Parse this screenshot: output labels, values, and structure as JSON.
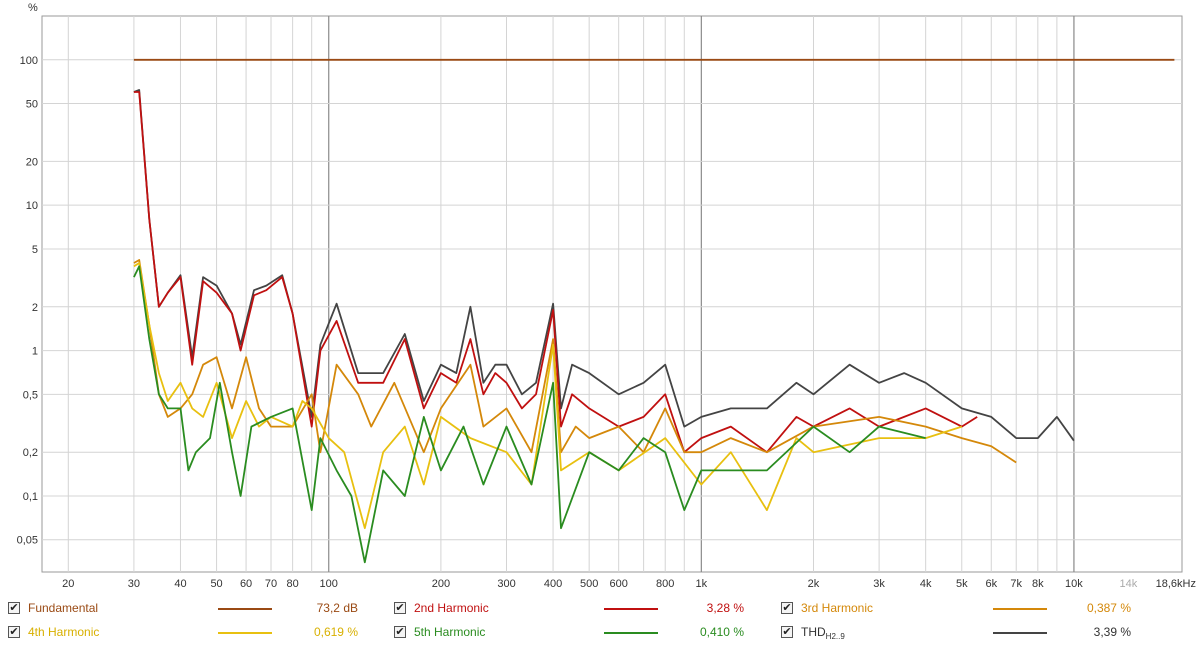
{
  "chart_data": {
    "type": "line",
    "title": "",
    "ylabel": "%",
    "xlabel": "",
    "x_scale": "log",
    "y_scale": "log",
    "xlim": [
      17,
      19500
    ],
    "ylim": [
      0.03,
      200
    ],
    "grid": true,
    "x_ticks": [
      "20",
      "30",
      "40",
      "50",
      "60",
      "70",
      "80",
      "100",
      "200",
      "300",
      "400",
      "500",
      "600",
      "800",
      "1k",
      "2k",
      "3k",
      "4k",
      "5k",
      "6k",
      "7k",
      "8k",
      "10k",
      "14k",
      "18,6kHz"
    ],
    "x_tick_values": [
      20,
      30,
      40,
      50,
      60,
      70,
      80,
      100,
      200,
      300,
      400,
      500,
      600,
      800,
      1000,
      2000,
      3000,
      4000,
      5000,
      6000,
      7000,
      8000,
      10000,
      14000,
      18600
    ],
    "y_ticks": [
      "0,05",
      "0,1",
      "0,2",
      "0,5",
      "1",
      "2",
      "5",
      "10",
      "20",
      "50",
      "100"
    ],
    "y_tick_values": [
      0.05,
      0.1,
      0.2,
      0.5,
      1,
      2,
      5,
      10,
      20,
      50,
      100
    ],
    "series": [
      {
        "name": "Fundamental",
        "value_label": "73,2 dB",
        "color": "#9a4a14",
        "x": [
          30,
          18600
        ],
        "values": [
          100,
          100
        ]
      },
      {
        "name": "2nd Harmonic",
        "value_label": "3,28 %",
        "color": "#c01010",
        "x": [
          30,
          31,
          33,
          35,
          37,
          40,
          43,
          46,
          50,
          55,
          58,
          63,
          68,
          75,
          80,
          90,
          95,
          105,
          120,
          140,
          160,
          180,
          200,
          220,
          240,
          260,
          280,
          300,
          330,
          360,
          400,
          420,
          450,
          500,
          600,
          700,
          800,
          900,
          1000,
          1200,
          1500,
          1800,
          2000,
          2500,
          3000,
          3500,
          4000,
          5000,
          5500
        ],
        "values": [
          60,
          60,
          8,
          2,
          2.5,
          3.2,
          0.8,
          3.0,
          2.5,
          1.8,
          1.0,
          2.4,
          2.6,
          3.2,
          1.8,
          0.3,
          1.0,
          1.6,
          0.6,
          0.6,
          1.2,
          0.4,
          0.7,
          0.6,
          1.2,
          0.5,
          0.7,
          0.6,
          0.4,
          0.5,
          1.9,
          0.3,
          0.5,
          0.4,
          0.3,
          0.35,
          0.5,
          0.2,
          0.25,
          0.3,
          0.2,
          0.35,
          0.3,
          0.4,
          0.3,
          0.35,
          0.4,
          0.3,
          0.35
        ]
      },
      {
        "name": "3rd Harmonic",
        "value_label": "0,387 %",
        "color": "#d4880a",
        "x": [
          30,
          31,
          33,
          35,
          37,
          40,
          43,
          46,
          50,
          55,
          60,
          65,
          70,
          80,
          90,
          95,
          105,
          120,
          130,
          150,
          180,
          200,
          240,
          260,
          300,
          350,
          400,
          420,
          460,
          500,
          600,
          700,
          800,
          900,
          1000,
          1200,
          1500,
          2000,
          3000,
          4000,
          5000,
          6000,
          7000
        ],
        "values": [
          4,
          4.2,
          1.5,
          0.5,
          0.35,
          0.4,
          0.5,
          0.8,
          0.9,
          0.4,
          0.9,
          0.4,
          0.3,
          0.3,
          0.5,
          0.2,
          0.8,
          0.5,
          0.3,
          0.6,
          0.2,
          0.4,
          0.8,
          0.3,
          0.4,
          0.2,
          1.2,
          0.2,
          0.3,
          0.25,
          0.3,
          0.2,
          0.4,
          0.2,
          0.2,
          0.25,
          0.2,
          0.3,
          0.35,
          0.3,
          0.25,
          0.22,
          0.17
        ]
      },
      {
        "name": "4th Harmonic",
        "value_label": "0,619 %",
        "color": "#e8c010",
        "x": [
          30,
          31,
          33,
          35,
          37,
          40,
          43,
          46,
          50,
          55,
          60,
          65,
          70,
          80,
          85,
          90,
          100,
          110,
          125,
          140,
          160,
          180,
          200,
          240,
          300,
          350,
          400,
          420,
          500,
          600,
          800,
          1000,
          1200,
          1500,
          1800,
          2000,
          3000,
          4000,
          5000
        ],
        "values": [
          3.8,
          4.0,
          1.5,
          0.7,
          0.45,
          0.6,
          0.4,
          0.35,
          0.6,
          0.25,
          0.45,
          0.3,
          0.35,
          0.3,
          0.45,
          0.4,
          0.25,
          0.2,
          0.06,
          0.2,
          0.3,
          0.12,
          0.35,
          0.25,
          0.2,
          0.12,
          1.1,
          0.15,
          0.2,
          0.15,
          0.25,
          0.12,
          0.2,
          0.08,
          0.25,
          0.2,
          0.25,
          0.25,
          0.3
        ]
      },
      {
        "name": "5th Harmonic",
        "value_label": "0,410 %",
        "color": "#2a8c20",
        "x": [
          30,
          31,
          33,
          35,
          37,
          40,
          42,
          44,
          48,
          51,
          55,
          58,
          62,
          70,
          80,
          90,
          95,
          105,
          115,
          125,
          140,
          160,
          180,
          200,
          230,
          260,
          300,
          350,
          400,
          420,
          500,
          600,
          700,
          800,
          900,
          1000,
          1200,
          1500,
          2000,
          2500,
          3000,
          4000
        ],
        "values": [
          3.2,
          3.8,
          1.2,
          0.5,
          0.4,
          0.4,
          0.15,
          0.2,
          0.25,
          0.6,
          0.2,
          0.1,
          0.3,
          0.35,
          0.4,
          0.08,
          0.25,
          0.15,
          0.1,
          0.035,
          0.15,
          0.1,
          0.35,
          0.15,
          0.3,
          0.12,
          0.3,
          0.12,
          0.6,
          0.06,
          0.2,
          0.15,
          0.25,
          0.2,
          0.08,
          0.15,
          0.15,
          0.15,
          0.3,
          0.2,
          0.3,
          0.25
        ]
      },
      {
        "name": "THD H2..9",
        "value_label": "3,39 %",
        "color": "#444444",
        "x": [
          30,
          31,
          33,
          35,
          37,
          40,
          43,
          46,
          50,
          55,
          58,
          63,
          68,
          75,
          80,
          90,
          95,
          105,
          120,
          140,
          160,
          180,
          200,
          220,
          240,
          260,
          280,
          300,
          330,
          360,
          400,
          420,
          450,
          500,
          600,
          700,
          800,
          900,
          1000,
          1200,
          1500,
          1800,
          2000,
          2500,
          3000,
          3500,
          4000,
          5000,
          6000,
          7000,
          8000,
          9000,
          10000
        ],
        "values": [
          60,
          62,
          8,
          2,
          2.5,
          3.3,
          0.9,
          3.2,
          2.8,
          1.8,
          1.1,
          2.6,
          2.8,
          3.3,
          1.8,
          0.35,
          1.1,
          2.1,
          0.7,
          0.7,
          1.3,
          0.45,
          0.8,
          0.7,
          2.0,
          0.6,
          0.8,
          0.8,
          0.5,
          0.6,
          2.1,
          0.4,
          0.8,
          0.7,
          0.5,
          0.6,
          0.8,
          0.3,
          0.35,
          0.4,
          0.4,
          0.6,
          0.5,
          0.8,
          0.6,
          0.7,
          0.6,
          0.4,
          0.35,
          0.25,
          0.25,
          0.35,
          0.24
        ]
      }
    ]
  },
  "legend": {
    "items": [
      {
        "name": "Fundamental",
        "value": "73,2 dB",
        "checked": "✔"
      },
      {
        "name": "2nd Harmonic",
        "value": "3,28 %",
        "checked": "✔"
      },
      {
        "name": "3rd Harmonic",
        "value": "0,387 %",
        "checked": "✔"
      },
      {
        "name": "4th Harmonic",
        "value": "0,619 %",
        "checked": "✔"
      },
      {
        "name": "5th Harmonic",
        "value": "0,410 %",
        "checked": "✔"
      },
      {
        "name": "THD",
        "name_sub": "H2..9",
        "value": "3,39 %",
        "checked": "✔"
      }
    ]
  }
}
